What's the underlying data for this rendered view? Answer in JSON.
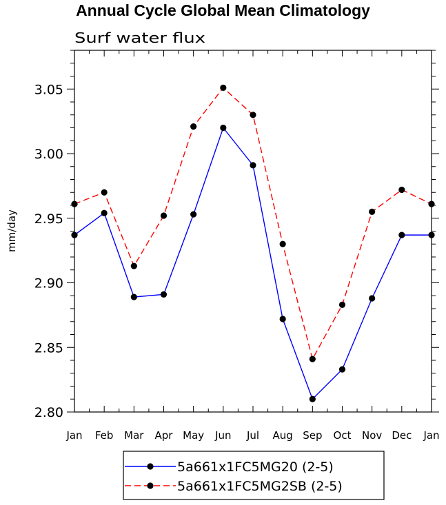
{
  "chart_data": {
    "type": "line",
    "title": "Annual Cycle Global Mean Climatology",
    "subtitle": "Surf water flux",
    "xlabel": "",
    "ylabel": "mm/day",
    "categories": [
      "Jan",
      "Feb",
      "Mar",
      "Apr",
      "May",
      "Jun",
      "Jul",
      "Aug",
      "Sep",
      "Oct",
      "Nov",
      "Dec",
      "Jan"
    ],
    "ylim": [
      2.8,
      3.08
    ],
    "yticks": [
      "2.80",
      "2.85",
      "2.90",
      "2.95",
      "3.00",
      "3.05"
    ],
    "series": [
      {
        "name": "5a661x1FC5MG20 (2-5)",
        "color": "#0000ff",
        "dash": "solid",
        "values": [
          2.937,
          2.954,
          2.889,
          2.891,
          2.953,
          3.02,
          2.991,
          2.872,
          2.81,
          2.833,
          2.888,
          2.937,
          2.937
        ]
      },
      {
        "name": "5a661x1FC5MG2SB (2-5)",
        "color": "#ff0000",
        "dash": "dashed",
        "values": [
          2.961,
          2.97,
          2.913,
          2.952,
          3.021,
          3.051,
          3.03,
          2.93,
          2.841,
          2.883,
          2.955,
          2.972,
          2.961
        ]
      }
    ]
  }
}
